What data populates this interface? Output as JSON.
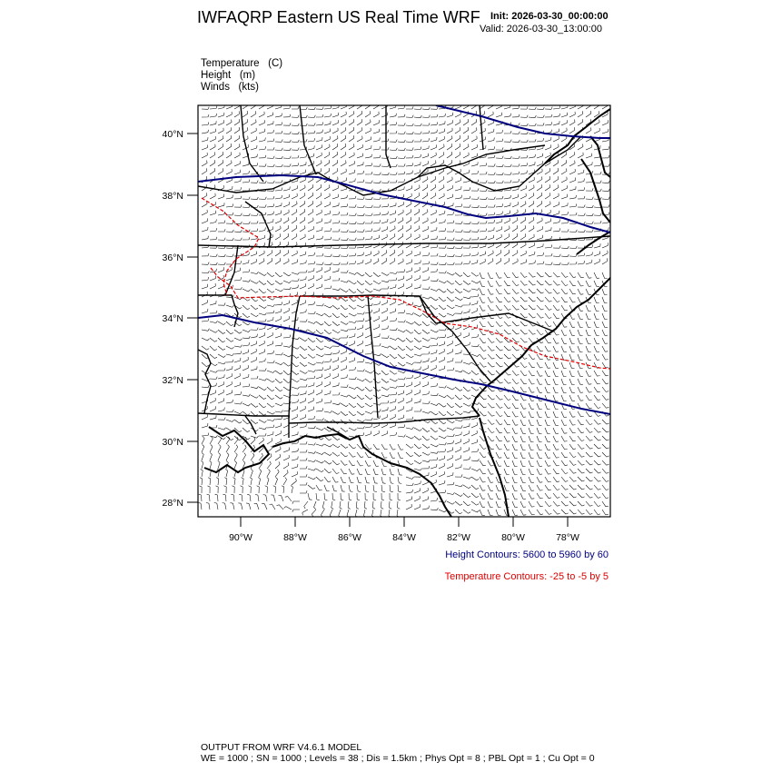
{
  "header": {
    "title": "IWFAQRP Eastern US Real Time WRF",
    "init": "Init: 2026-03-30_00:00:00",
    "valid": "Valid: 2026-03-30_13:00:00"
  },
  "fields": [
    {
      "label": "Temperature",
      "unit": "(C)"
    },
    {
      "label": "Height",
      "unit": "(m)"
    },
    {
      "label": "Winds",
      "unit": "(kts)"
    }
  ],
  "map": {
    "lat_labels": [
      "40°N",
      "38°N",
      "36°N",
      "34°N",
      "32°N",
      "30°N",
      "28°N"
    ],
    "lon_labels": [
      "90°W",
      "88°W",
      "86°W",
      "84°W",
      "82°W",
      "80°W",
      "78°W"
    ],
    "colors": {
      "height_contour": "#00007f",
      "temperature_contour": "#e00000",
      "barbs": "#000000",
      "borders": "#000000"
    }
  },
  "legend": {
    "height": "Height Contours: 5600 to 5960 by 60",
    "temperature": "Temperature Contours: -25 to -5 by 5"
  },
  "footer": {
    "line1": "OUTPUT FROM WRF V4.6.1 MODEL",
    "line2": "WE = 1000 ; SN = 1000 ; Levels = 38 ; Dis = 1.5km ; Phys Opt = 8 ; PBL Opt = 1 ; Cu Opt = 0"
  }
}
